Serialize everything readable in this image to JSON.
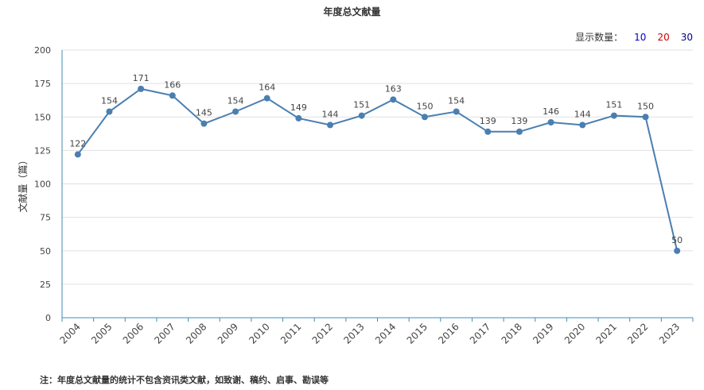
{
  "page": {
    "title": "年度总文献量",
    "count_label": "显示数量：",
    "count_options": [
      {
        "label": "10",
        "color": "#0000cc"
      },
      {
        "label": "20",
        "color": "#cc0000"
      },
      {
        "label": "30",
        "color": "#000080"
      }
    ],
    "note": "注：年度总文献量的统计不包含资讯类文献，如致谢、稿约、启事、勘误等"
  },
  "chart_data": {
    "type": "line",
    "title": "年度总文献量",
    "ylabel": "文献量（篇）",
    "xlabel": "",
    "ylim": [
      0,
      200
    ],
    "yticks": [
      0,
      25,
      50,
      75,
      100,
      125,
      150,
      175,
      200
    ],
    "categories": [
      "2004",
      "2005",
      "2006",
      "2007",
      "2008",
      "2009",
      "2010",
      "2011",
      "2012",
      "2013",
      "2014",
      "2015",
      "2016",
      "2017",
      "2018",
      "2019",
      "2020",
      "2021",
      "2022",
      "2023"
    ],
    "series": [
      {
        "values": [
          122,
          154,
          171,
          166,
          145,
          154,
          164,
          149,
          144,
          151,
          163,
          150,
          154,
          139,
          139,
          146,
          144,
          151,
          150,
          50
        ]
      }
    ],
    "colors": {
      "line": "#4a7fb0",
      "grid": "#e0e0e0",
      "axis": "#3d8fb5"
    },
    "grid": true
  }
}
